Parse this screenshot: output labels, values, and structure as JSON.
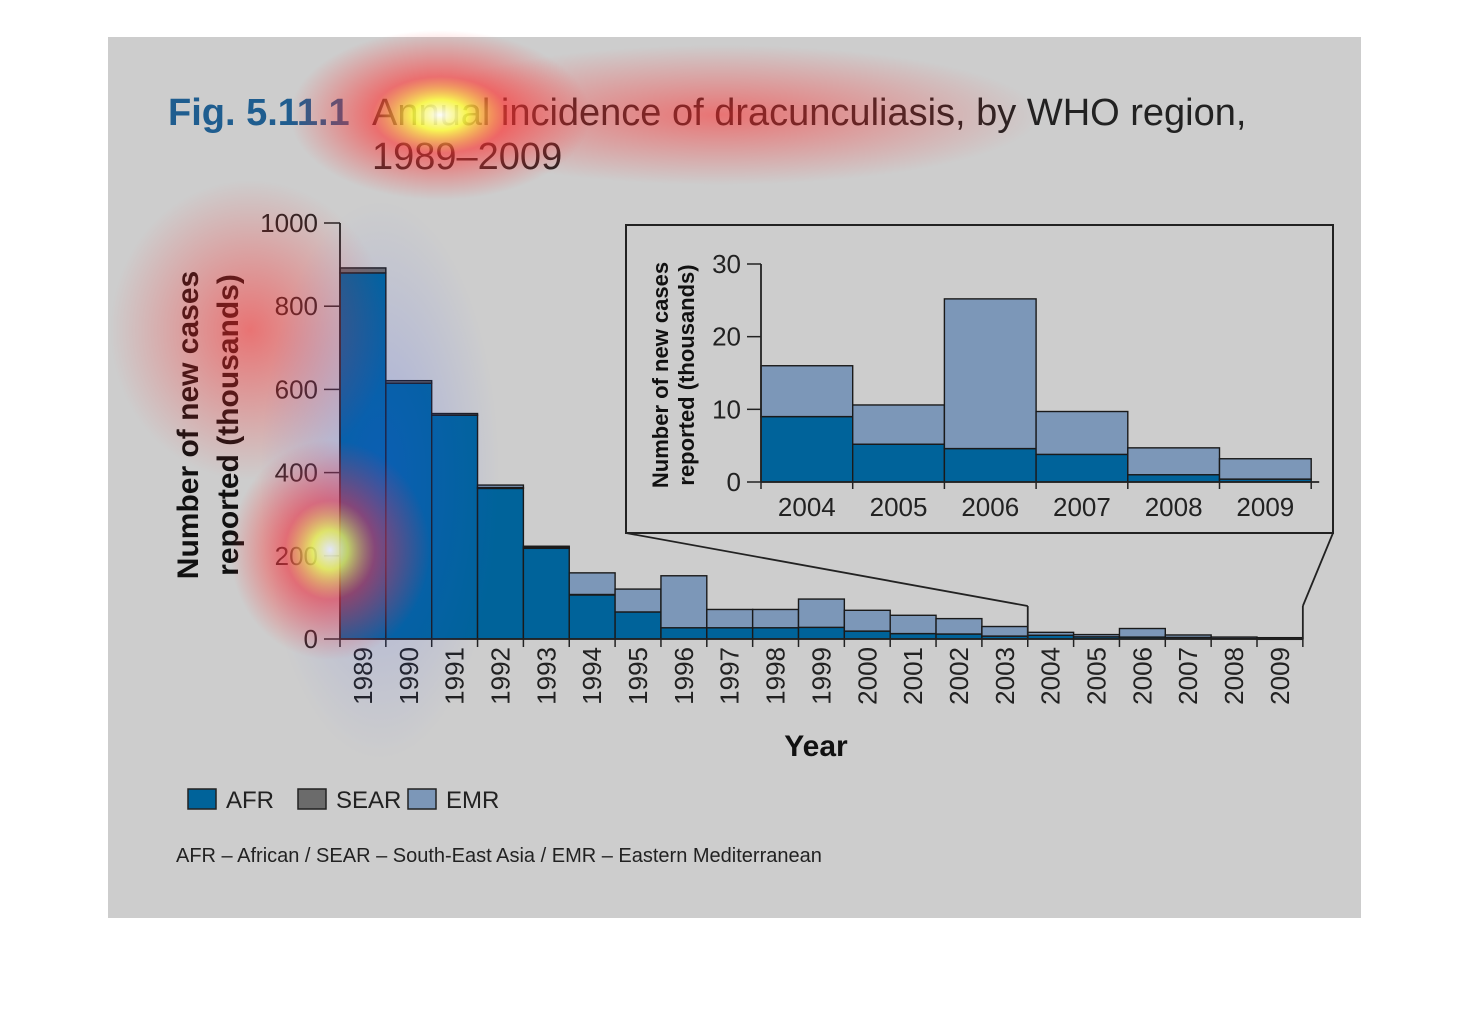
{
  "colors": {
    "background": "#cdcdcd",
    "AFR": "#00639a",
    "SEAR": "#6b6b6b",
    "EMR": "#7c97b8",
    "figure_number": "#1f5d8f",
    "heatmap_overlay": "#ff4a3a"
  },
  "figure": {
    "number": "Fig. 5.11.1",
    "title_line1": "Annual incidence of dracunculiasis, by WHO region,",
    "title_line2": "1989–2009"
  },
  "chart_data": [
    {
      "type": "bar",
      "stacked": true,
      "ylabel_line1": "Number of new cases",
      "ylabel_line2": "reported (thousands)",
      "xlabel": "Year",
      "ylim": [
        0,
        1000
      ],
      "yticks": [
        0,
        200,
        400,
        600,
        800,
        1000
      ],
      "categories": [
        "1989",
        "1990",
        "1991",
        "1992",
        "1993",
        "1994",
        "1995",
        "1996",
        "1997",
        "1998",
        "1999",
        "2000",
        "2001",
        "2002",
        "2003",
        "2004",
        "2005",
        "2006",
        "2007",
        "2008",
        "2009"
      ],
      "series": [
        {
          "name": "AFR",
          "values": [
            880,
            615,
            538,
            362,
            218,
            106,
            65,
            27,
            27,
            27,
            28,
            19,
            13,
            12,
            7,
            9,
            5.2,
            4.6,
            3.8,
            1,
            0.4
          ]
        },
        {
          "name": "SEAR",
          "values": [
            12,
            6,
            4,
            2,
            2,
            1,
            0,
            0,
            0,
            0,
            0,
            0,
            0,
            0,
            0,
            0,
            0,
            0,
            0,
            0,
            0
          ]
        },
        {
          "name": "EMR",
          "values": [
            0,
            0,
            0,
            6,
            3,
            52,
            55,
            125,
            44,
            44,
            68,
            50,
            44,
            37,
            23,
            7,
            5.4,
            20.6,
            5.9,
            3.7,
            2.8
          ]
        }
      ],
      "legend": "bottom-left",
      "grid": false
    },
    {
      "type": "bar",
      "stacked": true,
      "inset": true,
      "ylabel_line1": "Number of new cases",
      "ylabel_line2": "reported (thousands)",
      "ylim": [
        0,
        30
      ],
      "yticks": [
        0,
        10,
        20,
        30
      ],
      "categories": [
        "2004",
        "2005",
        "2006",
        "2007",
        "2008",
        "2009"
      ],
      "series": [
        {
          "name": "AFR",
          "values": [
            9,
            5.2,
            4.6,
            3.8,
            1,
            0.4
          ]
        },
        {
          "name": "EMR",
          "values": [
            7,
            5.4,
            20.6,
            5.9,
            3.7,
            2.8
          ]
        }
      ],
      "grid": false
    }
  ],
  "legend": {
    "items": [
      {
        "label": "AFR",
        "color": "#00639a"
      },
      {
        "label": "SEAR",
        "color": "#6b6b6b"
      },
      {
        "label": "EMR",
        "color": "#7c97b8"
      }
    ]
  },
  "note": "AFR – African / SEAR – South-East Asia / EMR – Eastern Mediterranean"
}
